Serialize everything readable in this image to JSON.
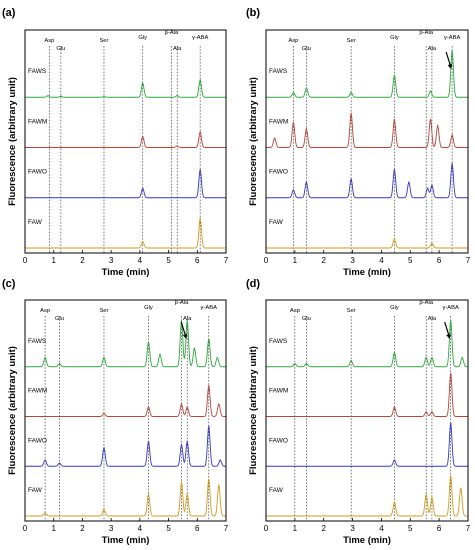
{
  "chart_data": [
    {
      "panel_label": "(a)",
      "type": "line",
      "xlabel": "Time (min)",
      "ylabel": "Fluorescence (arbitrary unit)",
      "xlim": [
        0,
        7
      ],
      "x_ticks": [
        "0",
        "1",
        "2",
        "3",
        "4",
        "5",
        "6",
        "7"
      ],
      "series": [
        {
          "name": "FAWS",
          "color": "#2aa83a",
          "peaks": [
            [
              0.8,
              0.05
            ],
            [
              1.25,
              0.03
            ],
            [
              2.75,
              0.02
            ],
            [
              4.1,
              0.45
            ],
            [
              5.3,
              0.05
            ],
            [
              6.1,
              0.55
            ]
          ]
        },
        {
          "name": "FAWM",
          "color": "#b5443a",
          "peaks": [
            [
              4.1,
              0.35
            ],
            [
              5.3,
              0.05
            ],
            [
              6.1,
              0.5
            ]
          ]
        },
        {
          "name": "FAWO",
          "color": "#3537c4",
          "peaks": [
            [
              4.1,
              0.3
            ],
            [
              6.1,
              0.9
            ]
          ]
        },
        {
          "name": "FAW",
          "color": "#d29a1c",
          "peaks": [
            [
              4.1,
              0.2
            ],
            [
              6.1,
              0.95
            ]
          ]
        }
      ],
      "markers": [
        {
          "label": "Asp",
          "x": 0.85
        },
        {
          "label": "Glu",
          "x": 1.25
        },
        {
          "label": "Ser",
          "x": 2.75
        },
        {
          "label": "Gly",
          "x": 4.1
        },
        {
          "label": "β-Ala",
          "x": 5.1
        },
        {
          "label": "Ala",
          "x": 5.3
        },
        {
          "label": "γ-ABA",
          "x": 6.1
        }
      ]
    },
    {
      "panel_label": "(b)",
      "type": "line",
      "xlabel": "Time (min)",
      "ylabel": "Fluorescence (arbitrary unit)",
      "xlim": [
        0,
        7
      ],
      "x_ticks": [
        "0",
        "1",
        "2",
        "3",
        "4",
        "5",
        "6",
        "7"
      ],
      "series": [
        {
          "name": "FAWS",
          "color": "#2aa83a",
          "peaks": [
            [
              0.95,
              0.15
            ],
            [
              1.4,
              0.3
            ],
            [
              2.95,
              0.15
            ],
            [
              4.45,
              0.7
            ],
            [
              5.7,
              0.2
            ],
            [
              6.45,
              1.5
            ]
          ]
        },
        {
          "name": "FAWM",
          "color": "#b5443a",
          "peaks": [
            [
              0.3,
              0.3
            ],
            [
              0.95,
              0.8
            ],
            [
              1.4,
              0.6
            ],
            [
              2.95,
              1.1
            ],
            [
              4.45,
              0.9
            ],
            [
              5.7,
              0.9
            ],
            [
              5.95,
              0.7
            ],
            [
              6.45,
              0.4
            ]
          ]
        },
        {
          "name": "FAWO",
          "color": "#3537c4",
          "peaks": [
            [
              0.95,
              0.25
            ],
            [
              1.4,
              0.5
            ],
            [
              2.95,
              0.6
            ],
            [
              4.45,
              0.9
            ],
            [
              4.95,
              0.5
            ],
            [
              5.6,
              0.3
            ],
            [
              5.75,
              0.4
            ],
            [
              6.45,
              1.1
            ]
          ]
        },
        {
          "name": "FAW",
          "color": "#d29a1c",
          "peaks": [
            [
              4.45,
              0.3
            ],
            [
              5.75,
              0.15
            ]
          ]
        }
      ],
      "markers": [
        {
          "label": "Asp",
          "x": 0.95
        },
        {
          "label": "Glu",
          "x": 1.4
        },
        {
          "label": "Ser",
          "x": 2.95
        },
        {
          "label": "Gly",
          "x": 4.45
        },
        {
          "label": "β-Ala",
          "x": 5.55
        },
        {
          "label": "Ala",
          "x": 5.75
        },
        {
          "label": "γ-ABA",
          "x": 6.45
        }
      ],
      "arrow_annotation": "γ-ABA"
    },
    {
      "panel_label": "(c)",
      "type": "line",
      "xlabel": "Time (min)",
      "ylabel": "Fluorescence (arbitrary unit)",
      "xlim": [
        0,
        7
      ],
      "x_ticks": [
        "0",
        "1",
        "2",
        "3",
        "4",
        "5",
        "6",
        "7"
      ],
      "series": [
        {
          "name": "FAWS",
          "color": "#2aa83a",
          "peaks": [
            [
              0.7,
              0.3
            ],
            [
              1.2,
              0.1
            ],
            [
              2.75,
              0.3
            ],
            [
              4.3,
              0.8
            ],
            [
              4.7,
              0.4
            ],
            [
              5.45,
              1.5
            ],
            [
              5.65,
              1.5
            ],
            [
              5.9,
              0.6
            ],
            [
              6.4,
              0.9
            ],
            [
              6.7,
              0.3
            ]
          ]
        },
        {
          "name": "FAWM",
          "color": "#b5443a",
          "peaks": [
            [
              2.75,
              0.1
            ],
            [
              4.3,
              0.3
            ],
            [
              5.45,
              0.4
            ],
            [
              5.65,
              0.3
            ],
            [
              6.4,
              1.0
            ],
            [
              6.75,
              0.4
            ]
          ]
        },
        {
          "name": "FAWO",
          "color": "#3537c4",
          "peaks": [
            [
              0.7,
              0.2
            ],
            [
              1.2,
              0.1
            ],
            [
              2.75,
              0.6
            ],
            [
              4.3,
              0.8
            ],
            [
              5.45,
              0.7
            ],
            [
              5.65,
              0.8
            ],
            [
              6.4,
              1.3
            ],
            [
              6.8,
              0.2
            ]
          ]
        },
        {
          "name": "FAW",
          "color": "#d29a1c",
          "peaks": [
            [
              0.7,
              0.1
            ],
            [
              2.75,
              0.2
            ],
            [
              4.3,
              0.7
            ],
            [
              5.45,
              1.1
            ],
            [
              5.65,
              0.7
            ],
            [
              6.4,
              1.2
            ],
            [
              6.75,
              1.0
            ]
          ]
        }
      ],
      "markers": [
        {
          "label": "Asp",
          "x": 0.7
        },
        {
          "label": "Glu",
          "x": 1.2
        },
        {
          "label": "Ser",
          "x": 2.75
        },
        {
          "label": "Gly",
          "x": 4.3
        },
        {
          "label": "β-Ala",
          "x": 5.45
        },
        {
          "label": "Ala",
          "x": 5.65
        },
        {
          "label": "γ-ABA",
          "x": 6.4
        }
      ],
      "arrow_annotation": "Ala"
    },
    {
      "panel_label": "(d)",
      "type": "line",
      "xlabel": "Time (min)",
      "ylabel": "Fluorescence (arbitrary unit)",
      "xlim": [
        0,
        7
      ],
      "x_ticks": [
        "0",
        "1",
        "2",
        "3",
        "4",
        "5",
        "6",
        "7"
      ],
      "series": [
        {
          "name": "FAWS",
          "color": "#2aa83a",
          "peaks": [
            [
              1.0,
              0.1
            ],
            [
              1.4,
              0.1
            ],
            [
              2.95,
              0.2
            ],
            [
              4.45,
              0.45
            ],
            [
              5.55,
              0.3
            ],
            [
              5.75,
              0.3
            ],
            [
              6.4,
              1.5
            ],
            [
              6.8,
              0.3
            ]
          ]
        },
        {
          "name": "FAWM",
          "color": "#b5443a",
          "peaks": [
            [
              4.45,
              0.3
            ],
            [
              5.55,
              0.15
            ],
            [
              5.75,
              0.15
            ],
            [
              6.4,
              1.4
            ]
          ]
        },
        {
          "name": "FAWO",
          "color": "#3537c4",
          "peaks": [
            [
              4.45,
              0.2
            ],
            [
              6.4,
              1.4
            ]
          ]
        },
        {
          "name": "FAW",
          "color": "#d29a1c",
          "peaks": [
            [
              4.45,
              0.45
            ],
            [
              5.55,
              0.7
            ],
            [
              5.75,
              0.6
            ],
            [
              6.4,
              1.3
            ],
            [
              6.75,
              0.9
            ]
          ]
        }
      ],
      "markers": [
        {
          "label": "Asp",
          "x": 1.0
        },
        {
          "label": "Glu",
          "x": 1.4
        },
        {
          "label": "Ser",
          "x": 2.95
        },
        {
          "label": "Gly",
          "x": 4.45
        },
        {
          "label": "β-Ala",
          "x": 5.55
        },
        {
          "label": "Ala",
          "x": 5.75
        },
        {
          "label": "γ-ABA",
          "x": 6.4
        }
      ],
      "arrow_annotation": "γ-ABA"
    }
  ]
}
